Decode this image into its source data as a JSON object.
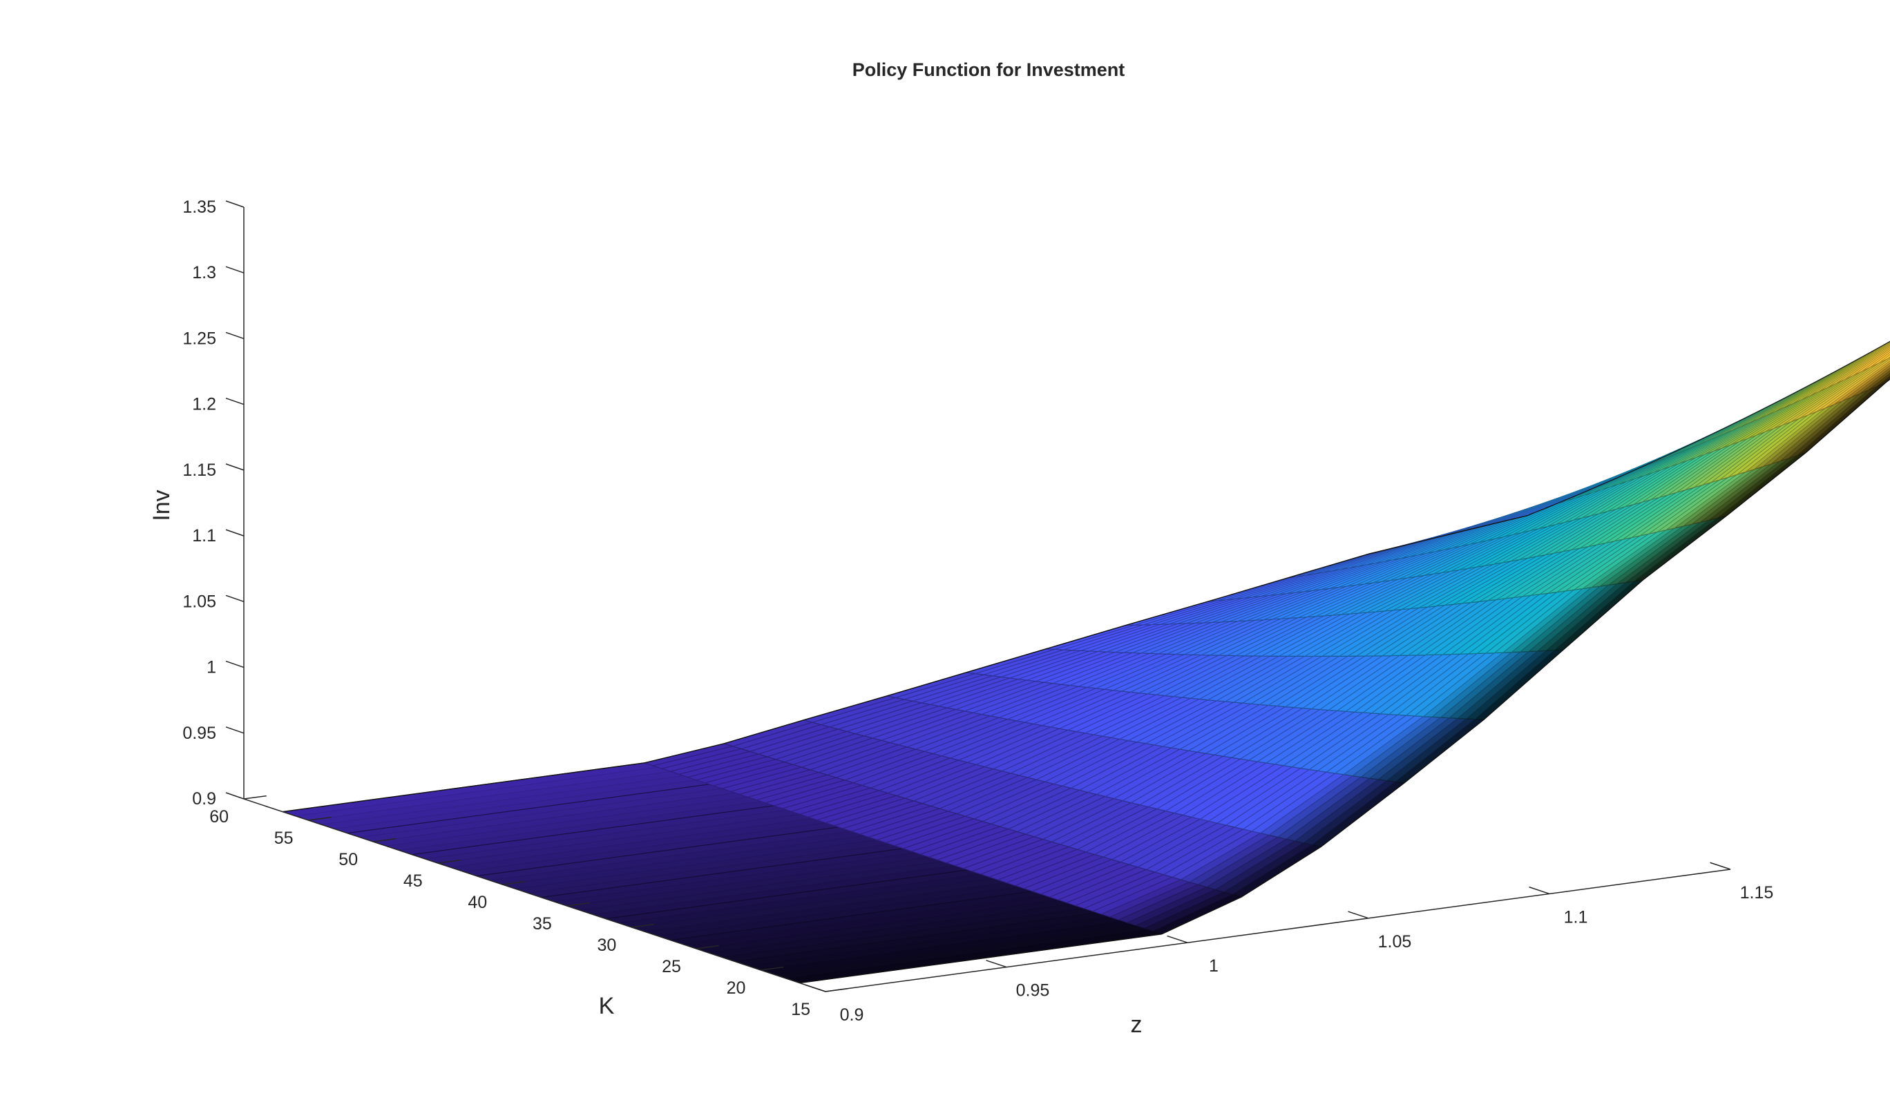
{
  "chart_data": {
    "type": "surface",
    "title": "Policy Function for Investment",
    "xlabel": "z",
    "ylabel": "K",
    "zlabel": "Inv",
    "xlim": [
      0.9,
      1.15
    ],
    "ylim": [
      15,
      60
    ],
    "zlim": [
      0.9,
      1.35
    ],
    "x_ticks": [
      0.9,
      0.95,
      1,
      1.05,
      1.1,
      1.15
    ],
    "x_tick_labels": [
      "0.9",
      "0.95",
      "1",
      "1.05",
      "1.1",
      "1.15"
    ],
    "y_ticks": [
      15,
      20,
      25,
      30,
      35,
      40,
      45,
      50,
      55,
      60
    ],
    "y_tick_labels": [
      "15",
      "20",
      "25",
      "30",
      "35",
      "40",
      "45",
      "50",
      "55",
      "60"
    ],
    "z_ticks": [
      0.9,
      0.95,
      1,
      1.05,
      1.1,
      1.15,
      1.2,
      1.25,
      1.3,
      1.35
    ],
    "z_tick_labels": [
      "0.9",
      "0.95",
      "1",
      "1.05",
      "1.1",
      "1.15",
      "1.2",
      "1.25",
      "1.3",
      "1.35"
    ],
    "z_grid": [
      1.0,
      1.022,
      1.044,
      1.067,
      1.089,
      1.111,
      1.133,
      1.156,
      1.178,
      1.2,
      1.222,
      1.244
    ],
    "K_range": [
      17,
      57
    ],
    "K_samples": [
      17,
      22,
      27,
      32,
      37,
      42,
      47,
      52,
      57
    ],
    "inv_floor": 0.9,
    "inv_ridge_peak": [
      0.9,
      0.92,
      0.95,
      0.99,
      1.03,
      1.075,
      1.12,
      1.16,
      1.2,
      1.245,
      1.285,
      1.33
    ],
    "inv_at_K_max": [
      0.9,
      0.91,
      0.925,
      0.94,
      0.955,
      0.97,
      0.985,
      1.0,
      1.015,
      1.03,
      1.04,
      1.05
    ],
    "colormap": "parula",
    "grid": false,
    "box": false
  }
}
